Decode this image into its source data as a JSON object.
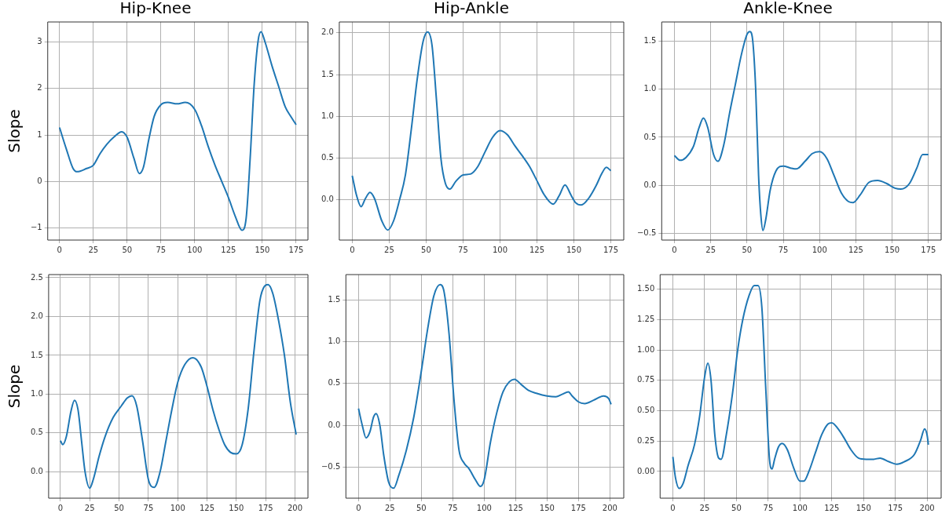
{
  "chart_data": [
    {
      "type": "line",
      "title": "Hip-Knee",
      "ylabel": "Slope",
      "grid": true,
      "xlim": [
        -8.75,
        183.75
      ],
      "xticks": [
        0,
        25,
        50,
        75,
        100,
        125,
        150,
        175
      ],
      "ylim": [
        -1.26,
        3.43
      ],
      "yticks": [
        {
          "value": -1,
          "label": "−1"
        },
        0,
        1,
        2,
        3
      ],
      "series": [
        {
          "color": "#1f77b4",
          "x": [
            0,
            5,
            10,
            13,
            20,
            25,
            30,
            35,
            40,
            46,
            50,
            55,
            59,
            62,
            66,
            70,
            75,
            80,
            87,
            93,
            100,
            105,
            110,
            115,
            120,
            125,
            130,
            135,
            138,
            141,
            144,
            147,
            149,
            152,
            157,
            162,
            167,
            171,
            175
          ],
          "values": [
            1.16,
            0.7,
            0.28,
            0.21,
            0.28,
            0.35,
            0.6,
            0.8,
            0.95,
            1.07,
            0.95,
            0.5,
            0.17,
            0.3,
            0.9,
            1.4,
            1.65,
            1.7,
            1.67,
            1.7,
            1.55,
            1.2,
            0.75,
            0.35,
            0,
            -0.35,
            -0.75,
            -1.05,
            -0.8,
            0.5,
            2.1,
            3.05,
            3.22,
            3.0,
            2.5,
            2.05,
            1.6,
            1.4,
            1.22
          ]
        }
      ]
    },
    {
      "type": "line",
      "title": "Hip-Ankle",
      "grid": true,
      "xlim": [
        -8.75,
        183.75
      ],
      "xticks": [
        0,
        25,
        50,
        75,
        100,
        125,
        150,
        175
      ],
      "ylim": [
        -0.48,
        2.13
      ],
      "yticks": [
        {
          "value": 0,
          "label": "0.0"
        },
        {
          "value": 0.5,
          "label": "0.5"
        },
        {
          "value": 1,
          "label": "1.0"
        },
        {
          "value": 1.5,
          "label": "1.5"
        },
        {
          "value": 2,
          "label": "2.0"
        }
      ],
      "series": [
        {
          "color": "#1f77b4",
          "x": [
            0,
            3,
            6,
            9,
            12,
            15,
            20,
            24,
            28,
            32,
            36,
            40,
            44,
            48,
            51,
            54,
            57,
            60,
            63,
            66,
            70,
            75,
            80,
            85,
            90,
            95,
            100,
            105,
            110,
            115,
            120,
            125,
            130,
            136,
            140,
            144,
            148,
            151,
            155,
            160,
            165,
            169,
            172,
            175
          ],
          "values": [
            0.29,
            0.05,
            -0.08,
            0.02,
            0.09,
            0.02,
            -0.25,
            -0.36,
            -0.25,
            0,
            0.3,
            0.85,
            1.45,
            1.9,
            2.01,
            1.85,
            1.2,
            0.5,
            0.2,
            0.13,
            0.22,
            0.3,
            0.31,
            0.4,
            0.58,
            0.75,
            0.83,
            0.78,
            0.65,
            0.53,
            0.4,
            0.23,
            0.06,
            -0.05,
            0.05,
            0.18,
            0.06,
            -0.03,
            -0.06,
            0.02,
            0.17,
            0.32,
            0.39,
            0.35
          ]
        }
      ]
    },
    {
      "type": "line",
      "title": "Ankle-Knee",
      "grid": true,
      "xlim": [
        -8.75,
        183.75
      ],
      "xticks": [
        0,
        25,
        50,
        75,
        100,
        125,
        150,
        175
      ],
      "ylim": [
        -0.57,
        1.7
      ],
      "yticks": [
        {
          "value": -0.5,
          "label": "−0.5"
        },
        {
          "value": 0,
          "label": "0.0"
        },
        {
          "value": 0.5,
          "label": "0.5"
        },
        {
          "value": 1,
          "label": "1.0"
        },
        {
          "value": 1.5,
          "label": "1.5"
        }
      ],
      "series": [
        {
          "color": "#1f77b4",
          "x": [
            0,
            4,
            8,
            13,
            17,
            20,
            23,
            27,
            30,
            34,
            38,
            42,
            46,
            50,
            52,
            54,
            56,
            58,
            59.5,
            61,
            63,
            66,
            70,
            75,
            80,
            84,
            90,
            95,
            100,
            105,
            110,
            115,
            120,
            123,
            128,
            134,
            140,
            146,
            152,
            156,
            162,
            167,
            171,
            175
          ],
          "values": [
            0.31,
            0.26,
            0.29,
            0.4,
            0.6,
            0.7,
            0.6,
            0.32,
            0.25,
            0.42,
            0.75,
            1.05,
            1.35,
            1.57,
            1.6,
            1.5,
            1.0,
            0.1,
            -0.3,
            -0.47,
            -0.35,
            -0.05,
            0.15,
            0.2,
            0.18,
            0.17,
            0.25,
            0.33,
            0.35,
            0.28,
            0.1,
            -0.08,
            -0.17,
            -0.18,
            -0.1,
            0.03,
            0.05,
            0.02,
            -0.03,
            -0.04,
            0.02,
            0.18,
            0.32,
            0.32
          ]
        }
      ]
    },
    {
      "type": "line",
      "ylabel": "Slope",
      "grid": true,
      "xlim": [
        -10.05,
        211.05
      ],
      "xticks": [
        0,
        25,
        50,
        75,
        100,
        125,
        150,
        175,
        200
      ],
      "ylim": [
        -0.34,
        2.54
      ],
      "yticks": [
        {
          "value": 0,
          "label": "0.0"
        },
        {
          "value": 0.5,
          "label": "0.5"
        },
        {
          "value": 1,
          "label": "1.0"
        },
        {
          "value": 1.5,
          "label": "1.5"
        },
        {
          "value": 2,
          "label": "2.0"
        },
        {
          "value": 2.5,
          "label": "2.5"
        }
      ],
      "series": [
        {
          "color": "#1f77b4",
          "x": [
            0,
            2,
            5,
            9,
            12,
            15,
            18,
            21,
            25,
            28,
            33,
            38,
            45,
            52,
            57,
            61,
            65,
            70,
            75,
            80,
            85,
            90,
            95,
            100,
            106,
            113,
            120,
            125,
            130,
            135,
            140,
            145,
            150,
            155,
            160,
            165,
            170,
            174,
            177,
            181,
            186,
            191,
            196,
            201
          ],
          "values": [
            0.4,
            0.35,
            0.45,
            0.78,
            0.92,
            0.8,
            0.4,
            0.0,
            -0.21,
            -0.1,
            0.2,
            0.45,
            0.7,
            0.85,
            0.95,
            0.98,
            0.85,
            0.4,
            -0.1,
            -0.2,
            0.0,
            0.4,
            0.8,
            1.15,
            1.38,
            1.47,
            1.35,
            1.1,
            0.8,
            0.55,
            0.35,
            0.25,
            0.23,
            0.35,
            0.8,
            1.55,
            2.2,
            2.39,
            2.41,
            2.3,
            1.95,
            1.5,
            0.9,
            0.48
          ]
        }
      ]
    },
    {
      "type": "line",
      "grid": true,
      "xlim": [
        -10.05,
        211.05
      ],
      "xticks": [
        0,
        25,
        50,
        75,
        100,
        125,
        150,
        175,
        200
      ],
      "ylim": [
        -0.87,
        1.8
      ],
      "yticks": [
        {
          "value": -0.5,
          "label": "−0.5"
        },
        {
          "value": 0,
          "label": "0.0"
        },
        {
          "value": 0.5,
          "label": "0.5"
        },
        {
          "value": 1,
          "label": "1.0"
        },
        {
          "value": 1.5,
          "label": "1.5"
        }
      ],
      "series": [
        {
          "color": "#1f77b4",
          "x": [
            0,
            3,
            6,
            9,
            12,
            14,
            17,
            20,
            24,
            28,
            32,
            38,
            44,
            50,
            55,
            60,
            65,
            68,
            72,
            76,
            80,
            84,
            88,
            93,
            97,
            100,
            105,
            110,
            115,
            120,
            124,
            130,
            135,
            142,
            150,
            157,
            162,
            167,
            170,
            175,
            180,
            187,
            195,
            199,
            201
          ],
          "values": [
            0.2,
            0.0,
            -0.15,
            -0.08,
            0.1,
            0.14,
            0.0,
            -0.35,
            -0.68,
            -0.75,
            -0.6,
            -0.3,
            0.1,
            0.65,
            1.15,
            1.55,
            1.68,
            1.6,
            1.1,
            0.3,
            -0.3,
            -0.45,
            -0.52,
            -0.65,
            -0.73,
            -0.65,
            -0.2,
            0.15,
            0.4,
            0.52,
            0.55,
            0.48,
            0.42,
            0.38,
            0.35,
            0.34,
            0.37,
            0.4,
            0.35,
            0.28,
            0.26,
            0.3,
            0.35,
            0.32,
            0.25
          ]
        }
      ]
    },
    {
      "type": "line",
      "grid": true,
      "xlim": [
        -10.05,
        211.05
      ],
      "xticks": [
        0,
        25,
        50,
        75,
        100,
        125,
        150,
        175,
        200
      ],
      "ylim": [
        -0.22,
        1.62
      ],
      "yticks": [
        {
          "value": 0,
          "label": "0.00"
        },
        {
          "value": 0.25,
          "label": "0.25"
        },
        {
          "value": 0.5,
          "label": "0.50"
        },
        {
          "value": 0.75,
          "label": "0.75"
        },
        {
          "value": 1,
          "label": "1.00"
        },
        {
          "value": 1.25,
          "label": "1.25"
        },
        {
          "value": 1.5,
          "label": "1.50"
        }
      ],
      "series": [
        {
          "color": "#1f77b4",
          "x": [
            0,
            2,
            5,
            8,
            12,
            17,
            21,
            25,
            27.5,
            30,
            33,
            36,
            38,
            42,
            47,
            51,
            55,
            60,
            64,
            67,
            70,
            73,
            76,
            78,
            80,
            83,
            86,
            90,
            95,
            100,
            103,
            107,
            112,
            117,
            122,
            125,
            130,
            135,
            140,
            146,
            152,
            158,
            163,
            170,
            176,
            182,
            190,
            195,
            198,
            200,
            201
          ],
          "values": [
            0.12,
            -0.05,
            -0.14,
            -0.1,
            0.05,
            0.22,
            0.45,
            0.78,
            0.89,
            0.75,
            0.3,
            0.11,
            0.1,
            0.3,
            0.65,
            1.0,
            1.25,
            1.45,
            1.53,
            1.53,
            1.35,
            0.7,
            0.1,
            0.02,
            0.1,
            0.2,
            0.23,
            0.18,
            0.03,
            -0.08,
            -0.08,
            0.0,
            0.15,
            0.3,
            0.39,
            0.4,
            0.35,
            0.27,
            0.18,
            0.11,
            0.1,
            0.1,
            0.11,
            0.08,
            0.06,
            0.08,
            0.14,
            0.26,
            0.35,
            0.3,
            0.22
          ]
        }
      ]
    }
  ]
}
